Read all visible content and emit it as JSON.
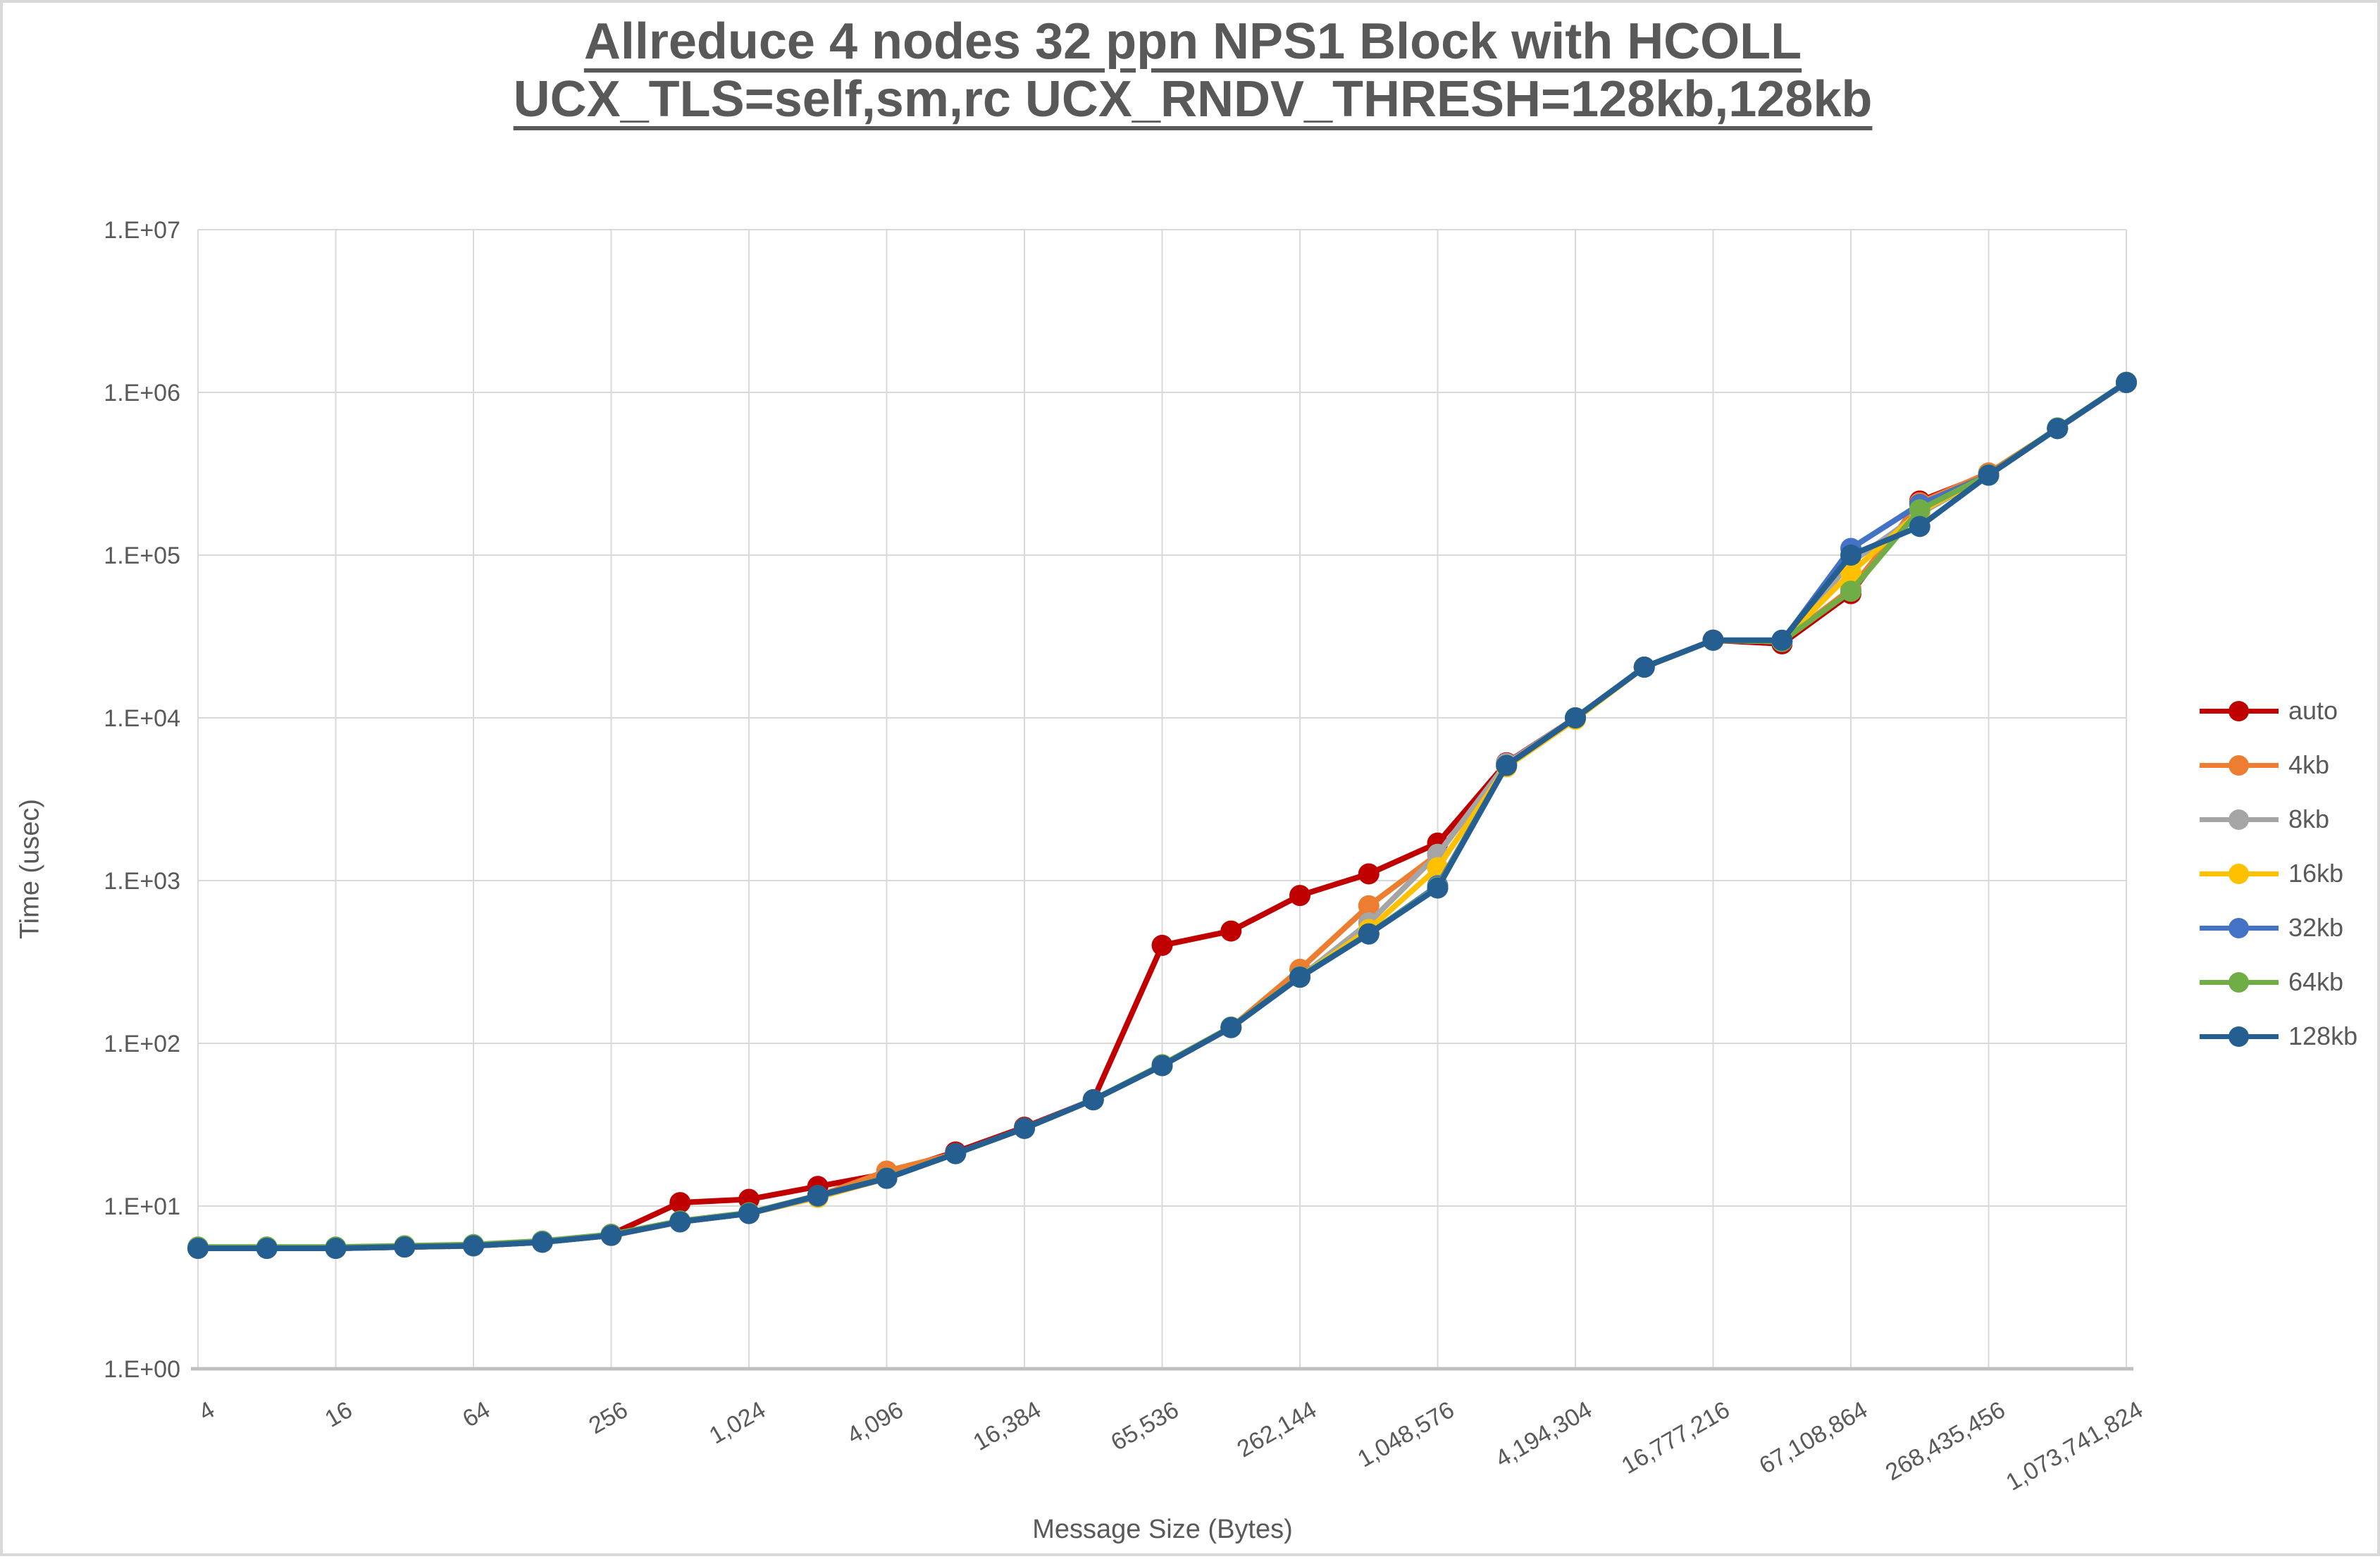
{
  "title": {
    "line1": "Allreduce 4 nodes 32 ppn NPS1 Block with HCOLL",
    "line2": "UCX_TLS=self,sm,rc UCX_RNDV_THRESH=128kb,128kb"
  },
  "colors": {
    "text": "#595959",
    "gridline": "#D9D9D9",
    "axis_line": "#BFBFBF",
    "canvas_border": "#D9D9D9",
    "background": "#FFFFFF"
  },
  "chart_data": {
    "type": "line",
    "title": "Allreduce 4 nodes 32 ppn NPS1 Block with HCOLL UCX_TLS=self,sm,rc UCX_RNDV_THRESH=128kb,128kb",
    "xlabel": "Message Size (Bytes)",
    "ylabel": "Time (usec)",
    "x_scale": "log2",
    "y_scale": "log10",
    "ylim": [
      1,
      10000000
    ],
    "xlim": [
      4,
      1073741824
    ],
    "grid": true,
    "legend_position": "right",
    "y_tick_labels": [
      "1.E+00",
      "1.E+01",
      "1.E+02",
      "1.E+03",
      "1.E+04",
      "1.E+05",
      "1.E+06",
      "1.E+07"
    ],
    "y_tick_values": [
      1,
      10,
      100,
      1000,
      10000,
      100000,
      1000000,
      10000000
    ],
    "x_tick_labels": [
      "4",
      "16",
      "64",
      "256",
      "1,024",
      "4,096",
      "16,384",
      "65,536",
      "262,144",
      "1,048,576",
      "4,194,304",
      "16,777,216",
      "67,108,864",
      "268,435,456",
      "1,073,741,824"
    ],
    "x_tick_values": [
      4,
      16,
      64,
      256,
      1024,
      4096,
      16384,
      65536,
      262144,
      1048576,
      4194304,
      16777216,
      67108864,
      268435456,
      1073741824
    ],
    "x": [
      4,
      8,
      16,
      32,
      64,
      128,
      256,
      512,
      1024,
      2048,
      4096,
      8192,
      16384,
      32768,
      65536,
      131072,
      262144,
      524288,
      1048576,
      2097152,
      4194304,
      8388608,
      16777216,
      33554432,
      67108864,
      134217728,
      268435456,
      536870912,
      1073741824
    ],
    "series": [
      {
        "name": "auto",
        "color": "#C00000",
        "values": [
          5.5,
          5.5,
          5.5,
          5.6,
          5.7,
          6.0,
          6.7,
          10.5,
          11.0,
          13.2,
          15.8,
          21.5,
          30.5,
          45,
          400,
          490,
          810,
          1100,
          1700,
          5300,
          10000,
          20500,
          30000,
          28500,
          58000,
          215000,
          315000,
          600000,
          1150000
        ]
      },
      {
        "name": "4kb",
        "color": "#ED7D31",
        "values": [
          5.5,
          5.5,
          5.5,
          5.6,
          5.7,
          6.0,
          6.6,
          8.0,
          9.0,
          11.5,
          16.4,
          21,
          30,
          45,
          73,
          125,
          285,
          700,
          1450,
          5200,
          10000,
          20500,
          30000,
          29500,
          62000,
          210000,
          320000,
          600000,
          1150000
        ]
      },
      {
        "name": "8kb",
        "color": "#A5A5A5",
        "values": [
          5.5,
          5.5,
          5.5,
          5.6,
          5.7,
          6.0,
          6.6,
          8.0,
          9.0,
          11.5,
          14.8,
          21,
          30,
          45,
          73,
          125,
          255,
          550,
          1450,
          5250,
          10000,
          20500,
          30000,
          29500,
          90000,
          180000,
          310000,
          600000,
          1150000
        ]
      },
      {
        "name": "16kb",
        "color": "#FFC000",
        "values": [
          5.5,
          5.5,
          5.5,
          5.6,
          5.7,
          6.0,
          6.6,
          8.0,
          9.0,
          11.3,
          14.8,
          21,
          30,
          45,
          73,
          125,
          255,
          500,
          1200,
          5000,
          9800,
          20500,
          30000,
          29500,
          78000,
          185000,
          310000,
          600000,
          1150000
        ]
      },
      {
        "name": "32kb",
        "color": "#4472C4",
        "values": [
          5.5,
          5.5,
          5.5,
          5.6,
          5.7,
          6.0,
          6.6,
          8.0,
          9.0,
          11.5,
          14.8,
          21,
          30,
          45,
          73,
          125,
          255,
          470,
          930,
          5100,
          10000,
          20500,
          30000,
          29500,
          110000,
          205000,
          310000,
          600000,
          1150000
        ]
      },
      {
        "name": "64kb",
        "color": "#70AD47",
        "values": [
          5.6,
          5.6,
          5.6,
          5.7,
          5.8,
          6.1,
          6.7,
          8.1,
          9.1,
          11.6,
          14.9,
          21,
          30,
          45,
          74,
          126,
          257,
          472,
          910,
          5100,
          10000,
          20500,
          30000,
          29500,
          60000,
          190000,
          312000,
          605000,
          1155000
        ]
      },
      {
        "name": "128kb",
        "color": "#255E91",
        "values": [
          5.5,
          5.5,
          5.5,
          5.6,
          5.7,
          6.0,
          6.6,
          8.0,
          9.0,
          11.6,
          14.8,
          21,
          30,
          45,
          73,
          125,
          255,
          470,
          900,
          5100,
          10000,
          20500,
          30000,
          30000,
          100000,
          150000,
          310000,
          600000,
          1150000
        ]
      }
    ]
  }
}
